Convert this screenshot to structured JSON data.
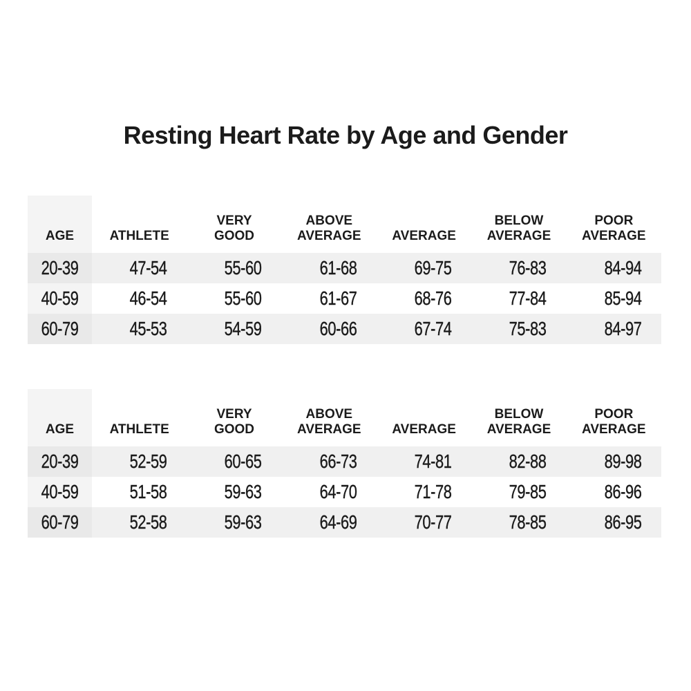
{
  "chart_data": {
    "type": "table",
    "title": "Resting Heart Rate by Age and Gender",
    "columns": [
      "AGE",
      "ATHLETE",
      "VERY\nGOOD",
      "ABOVE\nAVERAGE",
      "AVERAGE",
      "BELOW\nAVERAGE",
      "POOR\nAVERAGE"
    ],
    "tables": [
      {
        "name": "heart-rate-table-1",
        "rows": [
          [
            "20-39",
            "47-54",
            "55-60",
            "61-68",
            "69-75",
            "76-83",
            "84-94"
          ],
          [
            "40-59",
            "46-54",
            "55-60",
            "61-67",
            "68-76",
            "77-84",
            "85-94"
          ],
          [
            "60-79",
            "45-53",
            "54-59",
            "60-66",
            "67-74",
            "75-83",
            "84-97"
          ]
        ]
      },
      {
        "name": "heart-rate-table-2",
        "rows": [
          [
            "20-39",
            "52-59",
            "60-65",
            "66-73",
            "74-81",
            "82-88",
            "89-98"
          ],
          [
            "40-59",
            "51-58",
            "59-63",
            "64-70",
            "71-78",
            "79-85",
            "86-96"
          ],
          [
            "60-79",
            "52-58",
            "59-63",
            "64-69",
            "70-77",
            "78-85",
            "86-95"
          ]
        ]
      }
    ]
  },
  "colors": {
    "background": "#ffffff",
    "text": "#1b1b1b",
    "age_column_bg": "#f4f4f4",
    "stripe_bg": "#f0f0f0",
    "stripe_age_overlap_bg": "#e9e9e9"
  }
}
